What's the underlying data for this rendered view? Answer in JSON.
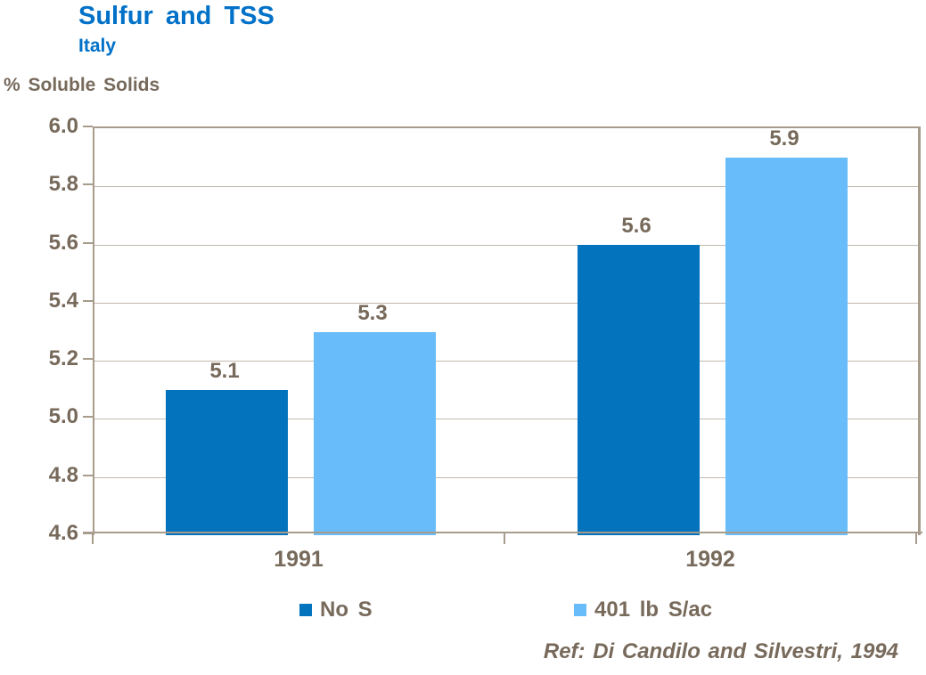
{
  "header": {
    "title": "Sulfur and TSS",
    "subtitle": "Italy"
  },
  "axis_title": "% Soluble Solids",
  "reference": "Ref: Di Candilo and Silvestri, 1994",
  "colors": {
    "title_blue": "#0071C8",
    "text_brown": "#776A5B",
    "gridline": "#C2B9AE",
    "axis": "#A79C8C"
  },
  "chart_data": {
    "type": "bar",
    "title": "Sulfur and TSS",
    "subtitle": "Italy",
    "ylabel": "% Soluble Solids",
    "categories": [
      "1991",
      "1992"
    ],
    "series": [
      {
        "name": "No S",
        "color": "#0473BE",
        "values": [
          5.1,
          5.6
        ]
      },
      {
        "name": "401 lb S/ac",
        "color": "#69BCFA",
        "values": [
          5.3,
          5.9
        ]
      }
    ],
    "ylim": [
      4.6,
      6.0
    ],
    "yticks": [
      4.6,
      4.8,
      5.0,
      5.2,
      5.4,
      5.6,
      5.8,
      6.0
    ],
    "ytick_decimals": 1,
    "grid": true,
    "data_labels": true,
    "legend_position": "bottom",
    "annotation": "Ref: Di Candilo and Silvestri, 1994"
  }
}
